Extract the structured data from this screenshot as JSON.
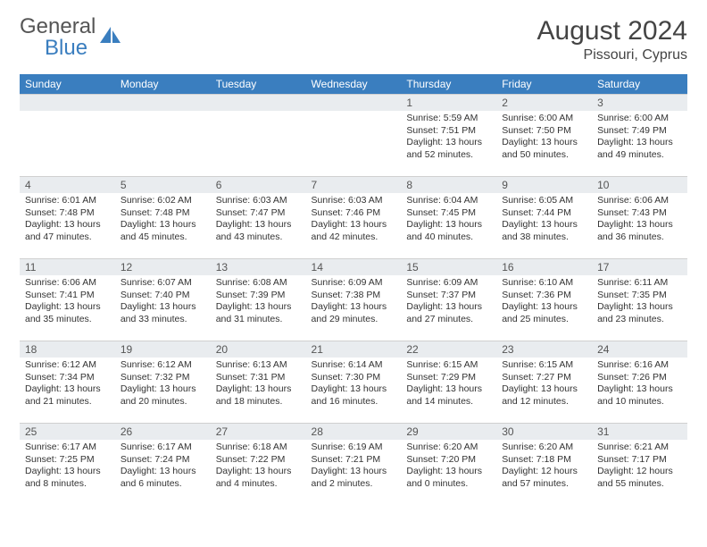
{
  "brand": {
    "name1": "General",
    "name2": "Blue"
  },
  "title": "August 2024",
  "location": "Pissouri, Cyprus",
  "colors": {
    "header_bg": "#3a7ebf",
    "header_text": "#ffffff",
    "daynum_bg": "#e9ecef",
    "border": "#d0d0d0",
    "body_text": "#333333",
    "logo_gray": "#555555",
    "logo_blue": "#3a7ebf"
  },
  "weekdays": [
    "Sunday",
    "Monday",
    "Tuesday",
    "Wednesday",
    "Thursday",
    "Friday",
    "Saturday"
  ],
  "weeks": [
    [
      null,
      null,
      null,
      null,
      {
        "n": "1",
        "sr": "Sunrise: 5:59 AM",
        "ss": "Sunset: 7:51 PM",
        "dl": "Daylight: 13 hours and 52 minutes."
      },
      {
        "n": "2",
        "sr": "Sunrise: 6:00 AM",
        "ss": "Sunset: 7:50 PM",
        "dl": "Daylight: 13 hours and 50 minutes."
      },
      {
        "n": "3",
        "sr": "Sunrise: 6:00 AM",
        "ss": "Sunset: 7:49 PM",
        "dl": "Daylight: 13 hours and 49 minutes."
      }
    ],
    [
      {
        "n": "4",
        "sr": "Sunrise: 6:01 AM",
        "ss": "Sunset: 7:48 PM",
        "dl": "Daylight: 13 hours and 47 minutes."
      },
      {
        "n": "5",
        "sr": "Sunrise: 6:02 AM",
        "ss": "Sunset: 7:48 PM",
        "dl": "Daylight: 13 hours and 45 minutes."
      },
      {
        "n": "6",
        "sr": "Sunrise: 6:03 AM",
        "ss": "Sunset: 7:47 PM",
        "dl": "Daylight: 13 hours and 43 minutes."
      },
      {
        "n": "7",
        "sr": "Sunrise: 6:03 AM",
        "ss": "Sunset: 7:46 PM",
        "dl": "Daylight: 13 hours and 42 minutes."
      },
      {
        "n": "8",
        "sr": "Sunrise: 6:04 AM",
        "ss": "Sunset: 7:45 PM",
        "dl": "Daylight: 13 hours and 40 minutes."
      },
      {
        "n": "9",
        "sr": "Sunrise: 6:05 AM",
        "ss": "Sunset: 7:44 PM",
        "dl": "Daylight: 13 hours and 38 minutes."
      },
      {
        "n": "10",
        "sr": "Sunrise: 6:06 AM",
        "ss": "Sunset: 7:43 PM",
        "dl": "Daylight: 13 hours and 36 minutes."
      }
    ],
    [
      {
        "n": "11",
        "sr": "Sunrise: 6:06 AM",
        "ss": "Sunset: 7:41 PM",
        "dl": "Daylight: 13 hours and 35 minutes."
      },
      {
        "n": "12",
        "sr": "Sunrise: 6:07 AM",
        "ss": "Sunset: 7:40 PM",
        "dl": "Daylight: 13 hours and 33 minutes."
      },
      {
        "n": "13",
        "sr": "Sunrise: 6:08 AM",
        "ss": "Sunset: 7:39 PM",
        "dl": "Daylight: 13 hours and 31 minutes."
      },
      {
        "n": "14",
        "sr": "Sunrise: 6:09 AM",
        "ss": "Sunset: 7:38 PM",
        "dl": "Daylight: 13 hours and 29 minutes."
      },
      {
        "n": "15",
        "sr": "Sunrise: 6:09 AM",
        "ss": "Sunset: 7:37 PM",
        "dl": "Daylight: 13 hours and 27 minutes."
      },
      {
        "n": "16",
        "sr": "Sunrise: 6:10 AM",
        "ss": "Sunset: 7:36 PM",
        "dl": "Daylight: 13 hours and 25 minutes."
      },
      {
        "n": "17",
        "sr": "Sunrise: 6:11 AM",
        "ss": "Sunset: 7:35 PM",
        "dl": "Daylight: 13 hours and 23 minutes."
      }
    ],
    [
      {
        "n": "18",
        "sr": "Sunrise: 6:12 AM",
        "ss": "Sunset: 7:34 PM",
        "dl": "Daylight: 13 hours and 21 minutes."
      },
      {
        "n": "19",
        "sr": "Sunrise: 6:12 AM",
        "ss": "Sunset: 7:32 PM",
        "dl": "Daylight: 13 hours and 20 minutes."
      },
      {
        "n": "20",
        "sr": "Sunrise: 6:13 AM",
        "ss": "Sunset: 7:31 PM",
        "dl": "Daylight: 13 hours and 18 minutes."
      },
      {
        "n": "21",
        "sr": "Sunrise: 6:14 AM",
        "ss": "Sunset: 7:30 PM",
        "dl": "Daylight: 13 hours and 16 minutes."
      },
      {
        "n": "22",
        "sr": "Sunrise: 6:15 AM",
        "ss": "Sunset: 7:29 PM",
        "dl": "Daylight: 13 hours and 14 minutes."
      },
      {
        "n": "23",
        "sr": "Sunrise: 6:15 AM",
        "ss": "Sunset: 7:27 PM",
        "dl": "Daylight: 13 hours and 12 minutes."
      },
      {
        "n": "24",
        "sr": "Sunrise: 6:16 AM",
        "ss": "Sunset: 7:26 PM",
        "dl": "Daylight: 13 hours and 10 minutes."
      }
    ],
    [
      {
        "n": "25",
        "sr": "Sunrise: 6:17 AM",
        "ss": "Sunset: 7:25 PM",
        "dl": "Daylight: 13 hours and 8 minutes."
      },
      {
        "n": "26",
        "sr": "Sunrise: 6:17 AM",
        "ss": "Sunset: 7:24 PM",
        "dl": "Daylight: 13 hours and 6 minutes."
      },
      {
        "n": "27",
        "sr": "Sunrise: 6:18 AM",
        "ss": "Sunset: 7:22 PM",
        "dl": "Daylight: 13 hours and 4 minutes."
      },
      {
        "n": "28",
        "sr": "Sunrise: 6:19 AM",
        "ss": "Sunset: 7:21 PM",
        "dl": "Daylight: 13 hours and 2 minutes."
      },
      {
        "n": "29",
        "sr": "Sunrise: 6:20 AM",
        "ss": "Sunset: 7:20 PM",
        "dl": "Daylight: 13 hours and 0 minutes."
      },
      {
        "n": "30",
        "sr": "Sunrise: 6:20 AM",
        "ss": "Sunset: 7:18 PM",
        "dl": "Daylight: 12 hours and 57 minutes."
      },
      {
        "n": "31",
        "sr": "Sunrise: 6:21 AM",
        "ss": "Sunset: 7:17 PM",
        "dl": "Daylight: 12 hours and 55 minutes."
      }
    ]
  ]
}
